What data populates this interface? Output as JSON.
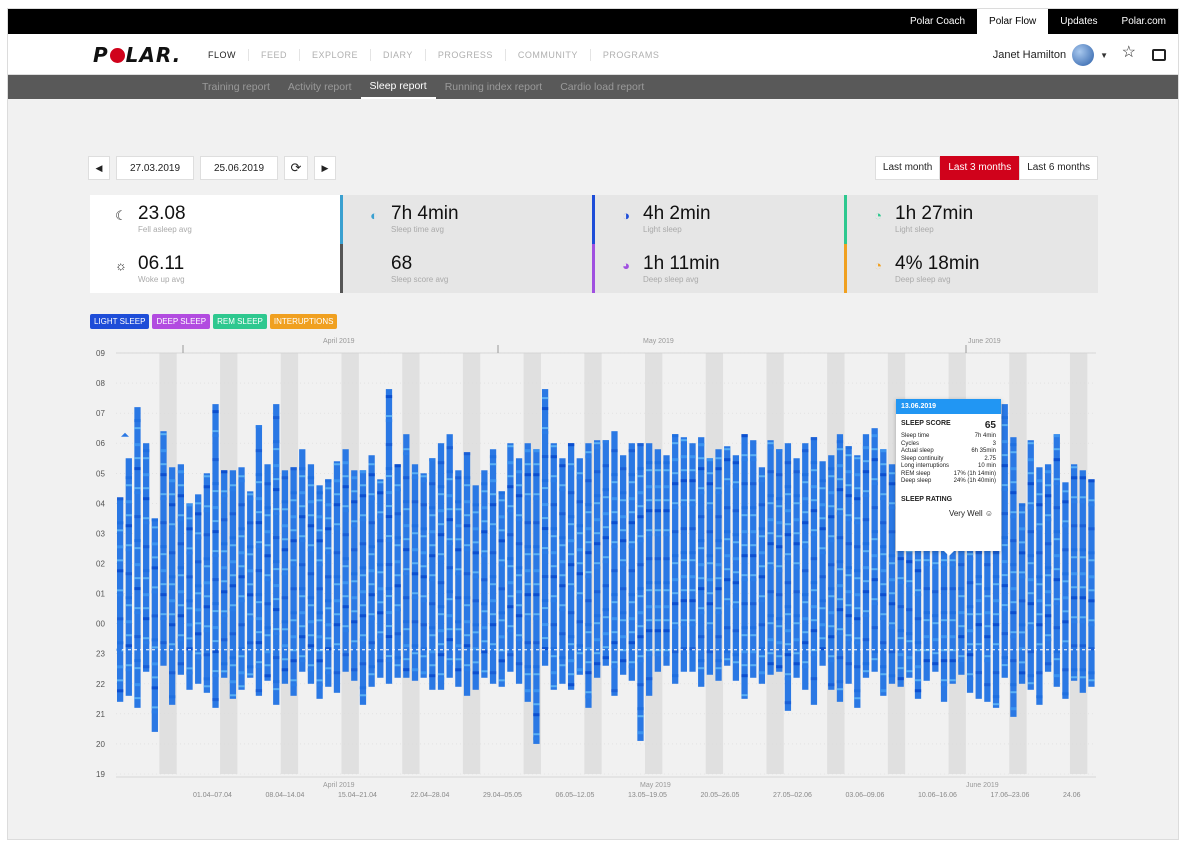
{
  "topbar": {
    "links": [
      {
        "label": "Polar Coach",
        "active": false
      },
      {
        "label": "Polar Flow",
        "active": true
      },
      {
        "label": "Updates",
        "active": false
      },
      {
        "label": "Polar.com",
        "active": false
      }
    ]
  },
  "header": {
    "logo": "POLAR.",
    "nav": [
      {
        "label": "FLOW",
        "active": true
      },
      {
        "label": "FEED",
        "active": false
      },
      {
        "label": "EXPLORE",
        "active": false
      },
      {
        "label": "DIARY",
        "active": false
      },
      {
        "label": "PROGRESS",
        "active": false
      },
      {
        "label": "COMMUNITY",
        "active": false
      },
      {
        "label": "PROGRAMS",
        "active": false
      }
    ],
    "user_name": "Janet Hamilton",
    "icons": [
      "star-icon",
      "message-icon"
    ]
  },
  "subnav": {
    "items": [
      {
        "label": "Training report",
        "active": false
      },
      {
        "label": "Activity report",
        "active": false
      },
      {
        "label": "Sleep report",
        "active": true
      },
      {
        "label": "Running index report",
        "active": false
      },
      {
        "label": "Cardio load report",
        "active": false
      }
    ]
  },
  "date_range": {
    "start": "27.03.2019",
    "end": "25.06.2019"
  },
  "range_buttons": [
    {
      "label": "Last month",
      "active": false
    },
    {
      "label": "Last 3 months",
      "active": true
    },
    {
      "label": "Last 6 months",
      "active": false
    }
  ],
  "stats": {
    "fall_asleep": {
      "value": "23.08",
      "label": "Fell asleep avg"
    },
    "wake_up": {
      "value": "06.11",
      "label": "Woke up avg"
    },
    "sleep_time": {
      "value": "7h 4min",
      "label": "Sleep time avg"
    },
    "sleep_score": {
      "value": "68",
      "label": "Sleep score avg"
    },
    "light_sleep": {
      "value": "4h 2min",
      "label": "Light sleep"
    },
    "deep_sleep": {
      "value": "1h 11min",
      "label": "Deep sleep avg"
    },
    "rem_light": {
      "value": "1h 27min",
      "label": "Light sleep"
    },
    "deep_pct": {
      "value": "4% 18min",
      "label": "Deep sleep avg"
    }
  },
  "legend": [
    {
      "label": "LIGHT SLEEP",
      "color": "#1e4dd8"
    },
    {
      "label": "DEEP SLEEP",
      "color": "#b24be0"
    },
    {
      "label": "REM SLEEP",
      "color": "#2ec88f"
    },
    {
      "label": "INTERUPTIONS",
      "color": "#f0a020"
    }
  ],
  "chart_data": {
    "type": "bar",
    "title": "",
    "ylabel": "",
    "y_ticks": [
      "09",
      "08",
      "07",
      "06",
      "05",
      "04",
      "03",
      "02",
      "01",
      "00",
      "23",
      "22",
      "21",
      "20",
      "19"
    ],
    "months_top": [
      "April 2019",
      "May 2019",
      "June 2019"
    ],
    "months_bottom": [
      "April 2019",
      "May 2019",
      "June 2019"
    ],
    "week_labels": [
      "01.04–07.04",
      "08.04–14.04",
      "15.04–21.04",
      "22.04–28.04",
      "29.04–05.05",
      "06.05–12.05",
      "13.05–19.05",
      "20.05–26.05",
      "27.05–02.06",
      "03.06–09.06",
      "10.06–16.06",
      "17.06–23.06",
      "24.06"
    ],
    "nights": [
      {
        "start": 21.4,
        "end": 4.2
      },
      {
        "start": 21.6,
        "end": 5.5
      },
      {
        "start": 21.2,
        "end": 7.2
      },
      {
        "start": 22.4,
        "end": 6.0
      },
      {
        "start": 20.4,
        "end": 3.5
      },
      {
        "start": 22.6,
        "end": 6.4
      },
      {
        "start": 21.3,
        "end": 5.2
      },
      {
        "start": 22.3,
        "end": 5.3
      },
      {
        "start": 21.8,
        "end": 4.0
      },
      {
        "start": 22.0,
        "end": 4.3
      },
      {
        "start": 21.7,
        "end": 5.0
      },
      {
        "start": 21.2,
        "end": 7.3
      },
      {
        "start": 22.2,
        "end": 5.1
      },
      {
        "start": 21.5,
        "end": 5.1
      },
      {
        "start": 21.8,
        "end": 5.2
      },
      {
        "start": 22.2,
        "end": 4.4
      },
      {
        "start": 21.6,
        "end": 6.6
      },
      {
        "start": 22.1,
        "end": 5.3
      },
      {
        "start": 21.3,
        "end": 7.3
      },
      {
        "start": 22.0,
        "end": 5.1
      },
      {
        "start": 21.6,
        "end": 5.2
      },
      {
        "start": 22.4,
        "end": 5.8
      },
      {
        "start": 22.0,
        "end": 5.3
      },
      {
        "start": 21.5,
        "end": 4.6
      },
      {
        "start": 21.9,
        "end": 4.8
      },
      {
        "start": 21.7,
        "end": 5.4
      },
      {
        "start": 22.4,
        "end": 5.8
      },
      {
        "start": 22.1,
        "end": 5.1
      },
      {
        "start": 21.3,
        "end": 5.1
      },
      {
        "start": 21.9,
        "end": 5.6
      },
      {
        "start": 22.2,
        "end": 4.8
      },
      {
        "start": 22.0,
        "end": 7.8
      },
      {
        "start": 22.2,
        "end": 5.3
      },
      {
        "start": 22.2,
        "end": 6.3
      },
      {
        "start": 22.1,
        "end": 5.3
      },
      {
        "start": 22.2,
        "end": 5.0
      },
      {
        "start": 21.8,
        "end": 5.5
      },
      {
        "start": 21.8,
        "end": 6.0
      },
      {
        "start": 22.2,
        "end": 6.3
      },
      {
        "start": 21.9,
        "end": 5.1
      },
      {
        "start": 21.6,
        "end": 5.7
      },
      {
        "start": 21.8,
        "end": 4.6
      },
      {
        "start": 22.2,
        "end": 5.1
      },
      {
        "start": 22.0,
        "end": 5.8
      },
      {
        "start": 21.9,
        "end": 4.4
      },
      {
        "start": 22.4,
        "end": 6.0
      },
      {
        "start": 22.0,
        "end": 5.5
      },
      {
        "start": 21.4,
        "end": 6.0
      },
      {
        "start": 20.0,
        "end": 5.8
      },
      {
        "start": 22.6,
        "end": 7.8
      },
      {
        "start": 21.8,
        "end": 6.0
      },
      {
        "start": 22.0,
        "end": 5.5
      },
      {
        "start": 21.8,
        "end": 6.0
      },
      {
        "start": 22.3,
        "end": 5.5
      },
      {
        "start": 21.2,
        "end": 6.0
      },
      {
        "start": 22.2,
        "end": 6.1
      },
      {
        "start": 22.6,
        "end": 6.1
      },
      {
        "start": 21.6,
        "end": 6.4
      },
      {
        "start": 22.3,
        "end": 5.6
      },
      {
        "start": 22.1,
        "end": 6.0
      },
      {
        "start": 20.1,
        "end": 6.0
      },
      {
        "start": 21.6,
        "end": 6.0
      },
      {
        "start": 22.4,
        "end": 5.8
      },
      {
        "start": 22.6,
        "end": 5.6
      },
      {
        "start": 22.0,
        "end": 6.3
      },
      {
        "start": 22.4,
        "end": 6.2
      },
      {
        "start": 22.4,
        "end": 6.0
      },
      {
        "start": 21.9,
        "end": 6.2
      },
      {
        "start": 22.3,
        "end": 5.5
      },
      {
        "start": 22.1,
        "end": 5.8
      },
      {
        "start": 22.6,
        "end": 5.9
      },
      {
        "start": 22.1,
        "end": 5.6
      },
      {
        "start": 21.5,
        "end": 6.3
      },
      {
        "start": 22.2,
        "end": 6.1
      },
      {
        "start": 22.0,
        "end": 5.2
      },
      {
        "start": 22.3,
        "end": 6.1
      },
      {
        "start": 22.4,
        "end": 5.8
      },
      {
        "start": 21.1,
        "end": 6.0
      },
      {
        "start": 22.2,
        "end": 5.5
      },
      {
        "start": 21.8,
        "end": 6.0
      },
      {
        "start": 21.3,
        "end": 6.2
      },
      {
        "start": 22.6,
        "end": 5.4
      },
      {
        "start": 21.8,
        "end": 5.6
      },
      {
        "start": 21.4,
        "end": 6.3
      },
      {
        "start": 22.0,
        "end": 5.9
      },
      {
        "start": 21.2,
        "end": 5.6
      },
      {
        "start": 22.2,
        "end": 6.3
      },
      {
        "start": 22.4,
        "end": 6.5
      },
      {
        "start": 21.6,
        "end": 5.8
      },
      {
        "start": 22.0,
        "end": 5.3
      },
      {
        "start": 21.9,
        "end": 6.6
      },
      {
        "start": 22.2,
        "end": 6.3
      },
      {
        "start": 21.5,
        "end": 5.8
      },
      {
        "start": 22.1,
        "end": 6.6
      },
      {
        "start": 22.4,
        "end": 6.3
      },
      {
        "start": 21.4,
        "end": 6.2
      },
      {
        "start": 22.0,
        "end": 6.0
      },
      {
        "start": 22.3,
        "end": 6.6
      },
      {
        "start": 21.7,
        "end": 5.8
      },
      {
        "start": 21.5,
        "end": 6.6
      },
      {
        "start": 21.4,
        "end": 6.0
      },
      {
        "start": 21.2,
        "end": 6.2
      },
      {
        "start": 22.2,
        "end": 7.3
      },
      {
        "start": 20.9,
        "end": 6.2
      },
      {
        "start": 22.0,
        "end": 4.0
      },
      {
        "start": 21.8,
        "end": 6.1
      },
      {
        "start": 21.3,
        "end": 5.2
      },
      {
        "start": 22.4,
        "end": 5.3
      },
      {
        "start": 21.9,
        "end": 6.3
      },
      {
        "start": 21.5,
        "end": 4.7
      },
      {
        "start": 22.1,
        "end": 5.3
      },
      {
        "start": 21.7,
        "end": 5.1
      },
      {
        "start": 21.9,
        "end": 4.8
      }
    ]
  },
  "tooltip": {
    "date": "13.06.2019",
    "score_label": "SLEEP SCORE",
    "score": "65",
    "rows": [
      {
        "k": "Sleep time",
        "v": "7h 4min"
      },
      {
        "k": "Cycles",
        "v": "3"
      },
      {
        "k": "Actual sleep",
        "v": "6h 35min"
      },
      {
        "k": "Sleep continuity",
        "v": "2.75"
      },
      {
        "k": "Long interruptions",
        "v": "10 min"
      },
      {
        "k": "REM sleep",
        "v": "17% (1h 14min)"
      },
      {
        "k": "Deep sleep",
        "v": "24% (1h 40min)"
      }
    ],
    "rating_label": "SLEEP RATING",
    "rating": "Very Well"
  }
}
